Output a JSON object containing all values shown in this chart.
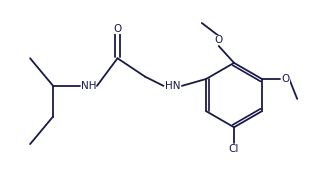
{
  "bg_color": "#ffffff",
  "line_color": "#1a1a4a",
  "line_width": 1.3,
  "font_size": 7.5,
  "figsize": [
    3.27,
    1.84
  ],
  "dpi": 100,
  "xlim": [
    0,
    10
  ],
  "ylim": [
    0,
    6
  ]
}
